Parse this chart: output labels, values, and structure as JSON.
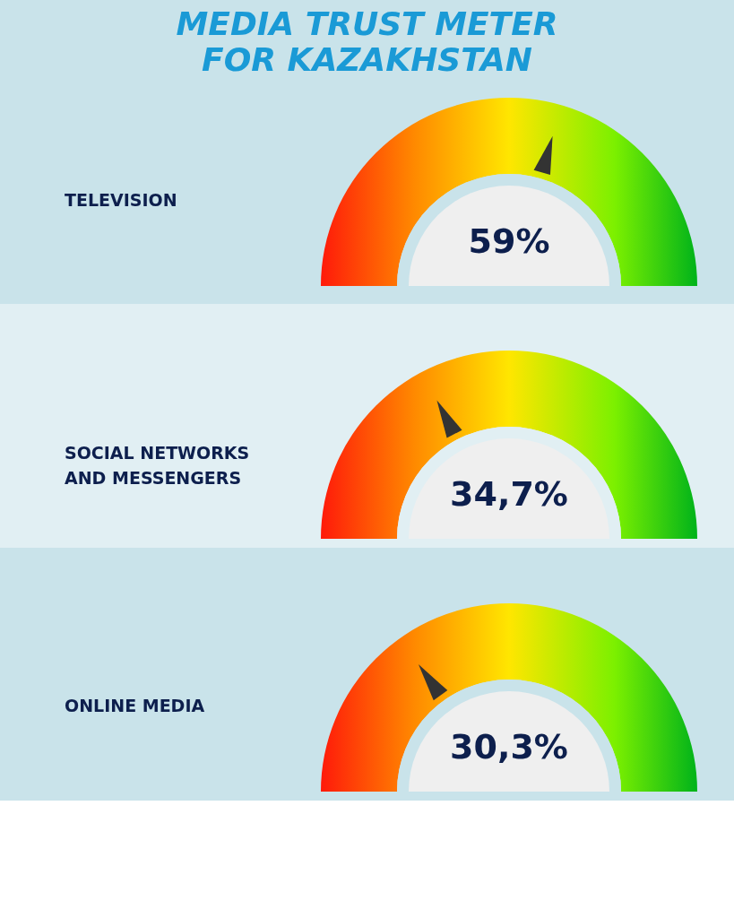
{
  "chart_data": {
    "type": "other",
    "title": [
      "MEDIA TRUST METER",
      "FOR KAZAKHSTAN"
    ],
    "categories": [
      "TELEVISION",
      "SOCIAL NETWORKS AND MESSENGERS",
      "ONLINE MEDIA"
    ],
    "values": [
      59,
      34.7,
      30.3
    ],
    "value_labels": [
      "59%",
      "34,7%",
      "30,3%"
    ]
  }
}
